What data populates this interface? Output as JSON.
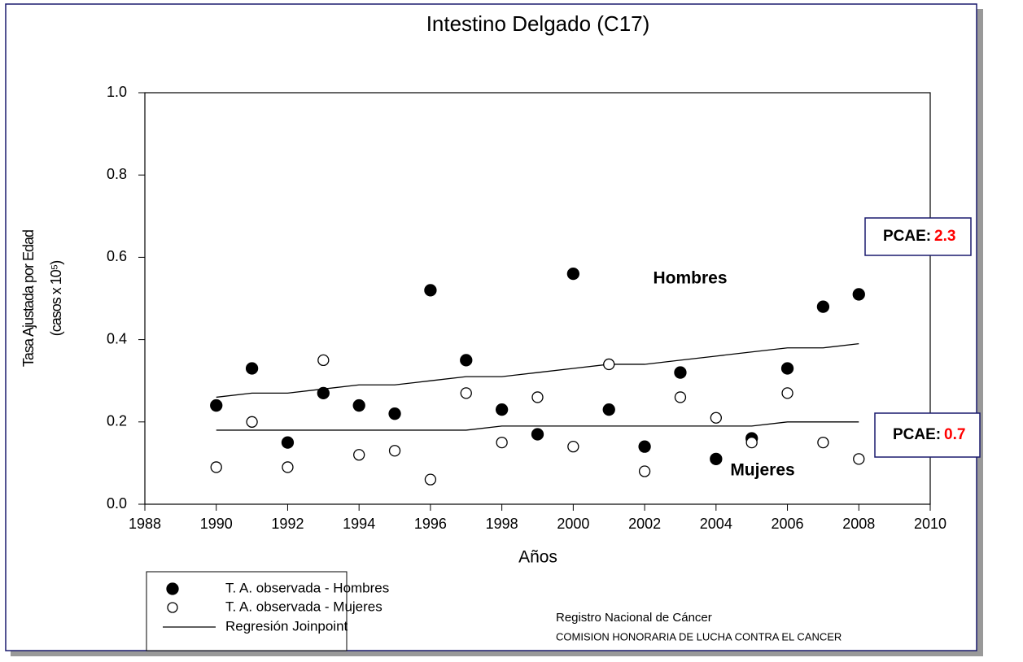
{
  "chart_data": {
    "type": "scatter",
    "title": "Intestino Delgado (C17)",
    "x_label": "Años",
    "y_label_lines": [
      "Tasa Ajustada por Edad",
      "(casos x 10⁵)"
    ],
    "x": [
      1990,
      1991,
      1992,
      1993,
      1994,
      1995,
      1996,
      1997,
      1998,
      1999,
      2000,
      2001,
      2002,
      2003,
      2004,
      2005,
      2006,
      2007,
      2008
    ],
    "series": [
      {
        "name": "T. A. observada - Hombres",
        "color": "#000000",
        "marker": "filled",
        "values": [
          0.24,
          0.33,
          0.15,
          0.27,
          0.24,
          0.22,
          0.52,
          0.35,
          0.23,
          0.17,
          0.56,
          0.23,
          0.14,
          0.32,
          0.11,
          0.16,
          0.33,
          0.48,
          0.51
        ]
      },
      {
        "name": "T. A. observada - Mujeres",
        "color": "#000000",
        "marker": "open",
        "values": [
          0.09,
          0.2,
          0.09,
          0.35,
          0.12,
          0.13,
          0.06,
          0.27,
          0.15,
          0.26,
          0.14,
          0.34,
          0.08,
          0.26,
          0.21,
          0.15,
          0.27,
          0.15,
          0.11
        ]
      }
    ],
    "regression": {
      "name": "Regresión Joinpoint",
      "color": "#000000",
      "series": [
        {
          "values": [
            0.26,
            0.27,
            0.27,
            0.28,
            0.29,
            0.29,
            0.3,
            0.31,
            0.31,
            0.32,
            0.33,
            0.34,
            0.34,
            0.35,
            0.36,
            0.37,
            0.38,
            0.38,
            0.39
          ]
        },
        {
          "values": [
            0.18,
            0.18,
            0.18,
            0.18,
            0.18,
            0.18,
            0.18,
            0.18,
            0.19,
            0.19,
            0.19,
            0.19,
            0.19,
            0.19,
            0.19,
            0.19,
            0.2,
            0.2,
            0.2
          ]
        }
      ]
    },
    "xlim": [
      1988,
      2010
    ],
    "xticks": [
      1988,
      1990,
      1992,
      1994,
      1996,
      1998,
      2000,
      2002,
      2004,
      2006,
      2008,
      2010
    ],
    "ylim": [
      0,
      1
    ],
    "yticks": [
      {
        "value": 0,
        "label": "0.0"
      },
      {
        "value": 0.2,
        "label": "0.2"
      },
      {
        "value": 0.4,
        "label": "0.4"
      },
      {
        "value": 0.6,
        "label": "0.6"
      },
      {
        "value": 0.8,
        "label": "0.8"
      },
      {
        "value": 1,
        "label": "1.0"
      }
    ],
    "annotations": [
      "Hombres",
      "Mujeres"
    ],
    "pcae": [
      {
        "label": "PCAE:",
        "value": 2.3
      },
      {
        "label": "PCAE:",
        "value": 0.7
      }
    ],
    "pcae_color": "#ff0000",
    "footer": [
      "Registro Nacional de Cáncer",
      "COMISION HONORARIA DE LUCHA CONTRA EL CANCER"
    ]
  }
}
